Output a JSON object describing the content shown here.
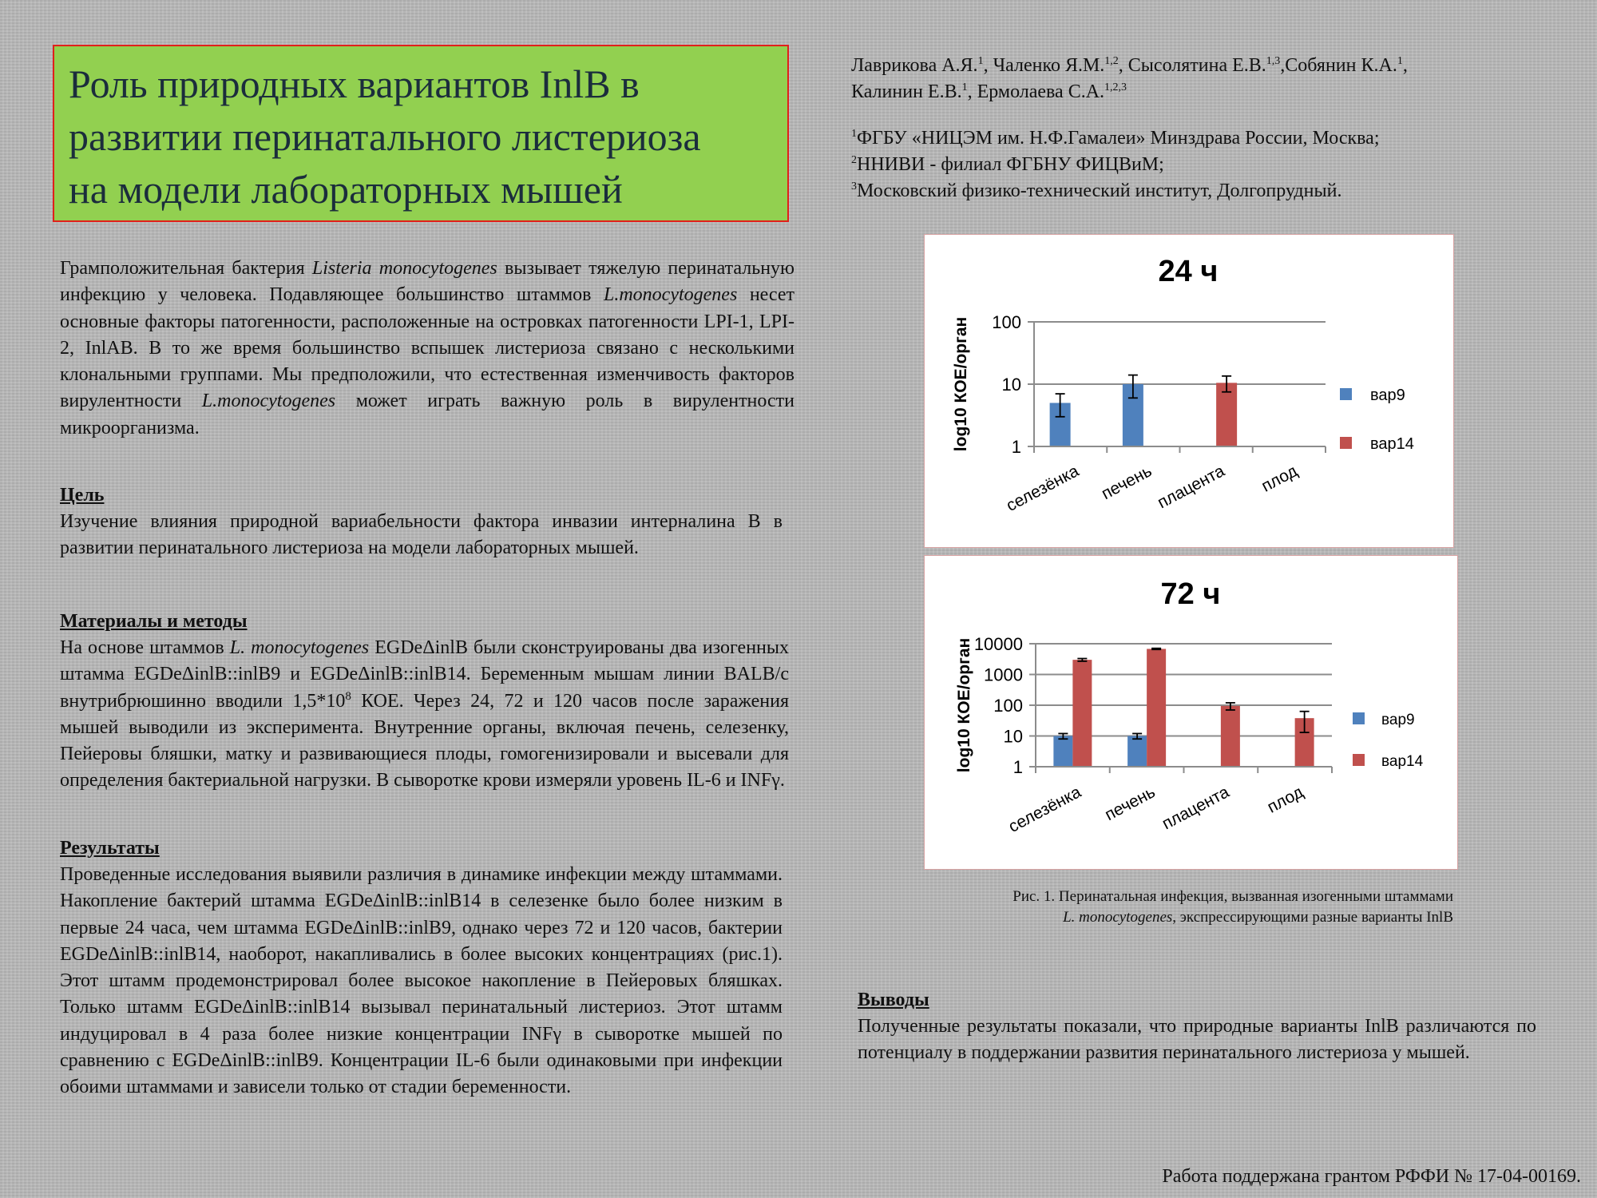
{
  "title": {
    "lines": [
      "Роль природных вариантов InlB в",
      "развитии перинатального листериоза",
      "на модели  лабораторных мышей"
    ]
  },
  "authors": {
    "line1": [
      {
        "name": "Лаврикова А.Я.",
        "sup": "1",
        "sep": ", "
      },
      {
        "name": "Чаленко Я.М.",
        "sup": "1,2",
        "sep": ", "
      },
      {
        "name": "Сысолятина Е.В.",
        "sup": "1,3",
        "sep": ","
      },
      {
        "name": "Собянин К.А.",
        "sup": "1",
        "sep": ","
      }
    ],
    "line2": [
      {
        "name": "Калинин Е.В.",
        "sup": "1",
        "sep": ", "
      },
      {
        "name": "Ермолаева С.А.",
        "sup": "1,2,3",
        "sep": ""
      }
    ]
  },
  "affiliations": [
    {
      "sup": "1",
      "text": "ФГБУ «НИЦЭМ им. Н.Ф.Гамалеи» Минздрава России, Москва;"
    },
    {
      "sup": "2",
      "text": "ННИВИ - филиал ФГБНУ ФИЦВиМ;"
    },
    {
      "sup": "3",
      "text": "Московский физико-технический институт, Долгопрудный."
    }
  ],
  "intro": {
    "p1": "Грамположительная бактерия ",
    "italic1": "Listeria monocytogenes",
    "p2": " вызывает тяжелую перинатальную инфекцию у человека. Подавляющее большинство штаммов ",
    "italic2": "L.monocytogenes",
    "p3": " несет основные факторы патогенности, расположенные на островках патогенности LPI-1, LPI-2, InlAB. В то же время большинство вспышек листериоза связано с несколькими клональными группами. Мы предположили, что естественная изменчивость факторов вирулентности ",
    "italic3": "L.monocytogenes",
    "p4": " может играть важную роль в вирулентности микроорганизма."
  },
  "goal": {
    "heading": "Цель",
    "text": "Изучение влияния природной вариабельности фактора инвазии интерналина В в развитии перинатального листериоза на модели лабораторных мышей."
  },
  "methods": {
    "heading": "Материалы и методы",
    "p1": "На основе штаммов ",
    "italic1": "L. monocytogenes",
    "p2": " EGDeΔinlB были сконструированы два изогенных штамма EGDeΔinlB::inlB9 и EGDeΔinlB::inlB14. Беременным мышам линии BALB/c внутрибрюшинно вводили 1,5*10",
    "sup": "8",
    "p3": " КОЕ. Через 24, 72 и 120 часов после заражения мышей выводили из эксперимента. Внутренние органы, включая печень, селезенку, Пейеровы бляшки, матку и развивающиеся плоды, гомогенизировали и высевали для определения бактериальной нагрузки. В сыворотке крови измеряли уровень IL-6 и INFγ."
  },
  "results": {
    "heading": "Результаты",
    "text": "Проведенные исследования выявили различия в динамике инфекции между штаммами. Накопление бактерий штамма EGDeΔinlB::inlB14 в селезенке было более низким в первые 24 часа, чем штамма EGDeΔinlB::inlB9, однако через 72 и 120 часов, бактерии EGDeΔinlB::inlB14, наоборот, накапливались в более высоких концентрациях (рис.1). Этот штамм продемонстрировал более высокое накопление в Пейеровых бляшках. Только штамм EGDeΔinlB::inlB14 вызывал перинатальный листериоз. Этот штамм индуцировал в 4 раза более низкие концентрации INFγ в сыворотке мышей по сравнению с EGDeΔinlB::inlB9. Концентрации IL-6 были одинаковыми при инфекции обоими штаммами и зависели только от стадии беременности."
  },
  "caption": {
    "p1": "Рис. 1. Перинатальная инфекция, вызванная изогенными штаммами",
    "italic": "L. monocytogenes",
    "p2": ", экспрессирующими разные варианты InlB"
  },
  "conclusions": {
    "heading": "Выводы",
    "text": "Полученные результаты показали, что природные варианты InlB различаются по потенциалу в поддержании развития перинатального листериоза у мышей."
  },
  "grant": "Работа поддержана грантом РФФИ № 17-04-00169.",
  "colors": {
    "var9": "#4f81bd",
    "var14": "#c0504d",
    "title_bg": "#92d050",
    "title_border": "#e0201b"
  },
  "chart_data": [
    {
      "type": "bar",
      "title": "24 ч",
      "ylabel": "log10 КОЕ/орган",
      "yscale": "log",
      "ylim": [
        1,
        100
      ],
      "yticks": [
        "100",
        "10",
        "1"
      ],
      "categories": [
        "селезёнка",
        "печень",
        "плацента",
        "плод"
      ],
      "series": [
        {
          "name": "вар9",
          "color": "#4f81bd",
          "values": [
            5,
            10,
            null,
            null
          ],
          "errors": [
            2,
            4,
            null,
            null
          ]
        },
        {
          "name": "вар14",
          "color": "#c0504d",
          "values": [
            null,
            null,
            10.5,
            null
          ],
          "errors": [
            null,
            null,
            3,
            null
          ]
        }
      ],
      "legend": "right"
    },
    {
      "type": "bar",
      "title": "72  ч",
      "ylabel": "log10 КОЕ/орган",
      "yscale": "log",
      "ylim": [
        1,
        10000
      ],
      "yticks": [
        "10000",
        "1000",
        "100",
        "10",
        "1"
      ],
      "categories": [
        "селезёнка",
        "печень",
        "плацента",
        "плод"
      ],
      "series": [
        {
          "name": "вар9",
          "color": "#4f81bd",
          "values": [
            10,
            10,
            null,
            null
          ],
          "errors": [
            2,
            2,
            null,
            null
          ]
        },
        {
          "name": "вар14",
          "color": "#c0504d",
          "values": [
            3000,
            6800,
            95,
            38
          ],
          "errors": [
            300,
            300,
            25,
            25
          ]
        }
      ],
      "legend": "right"
    }
  ]
}
